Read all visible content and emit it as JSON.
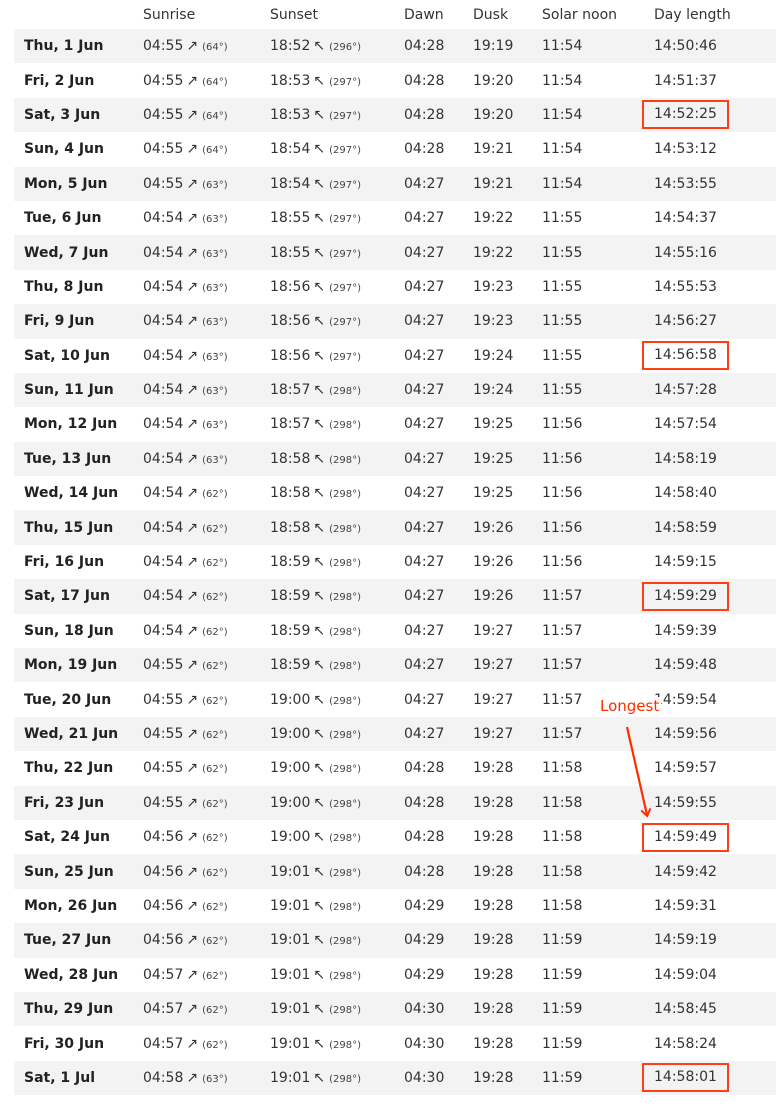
{
  "headers": [
    "",
    "Sunrise",
    "Sunset",
    "Dawn",
    "Dusk",
    "Solar noon",
    "Day length"
  ],
  "sunrise_symbol": "↗",
  "sunset_symbol": "↖",
  "rows": [
    {
      "date": "Thu, 1 Jun",
      "sunrise": "04:55",
      "sunrise_az": "(64°)",
      "sunset": "18:52",
      "sunset_az": "(296°)",
      "dawn": "04:28",
      "dusk": "19:19",
      "noon": "11:54",
      "length": "14:50:46",
      "highlight": false
    },
    {
      "date": "Fri, 2 Jun",
      "sunrise": "04:55",
      "sunrise_az": "(64°)",
      "sunset": "18:53",
      "sunset_az": "(297°)",
      "dawn": "04:28",
      "dusk": "19:20",
      "noon": "11:54",
      "length": "14:51:37",
      "highlight": false
    },
    {
      "date": "Sat, 3 Jun",
      "sunrise": "04:55",
      "sunrise_az": "(64°)",
      "sunset": "18:53",
      "sunset_az": "(297°)",
      "dawn": "04:28",
      "dusk": "19:20",
      "noon": "11:54",
      "length": "14:52:25",
      "highlight": true
    },
    {
      "date": "Sun, 4 Jun",
      "sunrise": "04:55",
      "sunrise_az": "(64°)",
      "sunset": "18:54",
      "sunset_az": "(297°)",
      "dawn": "04:28",
      "dusk": "19:21",
      "noon": "11:54",
      "length": "14:53:12",
      "highlight": false
    },
    {
      "date": "Mon, 5 Jun",
      "sunrise": "04:55",
      "sunrise_az": "(63°)",
      "sunset": "18:54",
      "sunset_az": "(297°)",
      "dawn": "04:27",
      "dusk": "19:21",
      "noon": "11:54",
      "length": "14:53:55",
      "highlight": false
    },
    {
      "date": "Tue, 6 Jun",
      "sunrise": "04:54",
      "sunrise_az": "(63°)",
      "sunset": "18:55",
      "sunset_az": "(297°)",
      "dawn": "04:27",
      "dusk": "19:22",
      "noon": "11:55",
      "length": "14:54:37",
      "highlight": false
    },
    {
      "date": "Wed, 7 Jun",
      "sunrise": "04:54",
      "sunrise_az": "(63°)",
      "sunset": "18:55",
      "sunset_az": "(297°)",
      "dawn": "04:27",
      "dusk": "19:22",
      "noon": "11:55",
      "length": "14:55:16",
      "highlight": false
    },
    {
      "date": "Thu, 8 Jun",
      "sunrise": "04:54",
      "sunrise_az": "(63°)",
      "sunset": "18:56",
      "sunset_az": "(297°)",
      "dawn": "04:27",
      "dusk": "19:23",
      "noon": "11:55",
      "length": "14:55:53",
      "highlight": false
    },
    {
      "date": "Fri, 9 Jun",
      "sunrise": "04:54",
      "sunrise_az": "(63°)",
      "sunset": "18:56",
      "sunset_az": "(297°)",
      "dawn": "04:27",
      "dusk": "19:23",
      "noon": "11:55",
      "length": "14:56:27",
      "highlight": false
    },
    {
      "date": "Sat, 10 Jun",
      "sunrise": "04:54",
      "sunrise_az": "(63°)",
      "sunset": "18:56",
      "sunset_az": "(297°)",
      "dawn": "04:27",
      "dusk": "19:24",
      "noon": "11:55",
      "length": "14:56:58",
      "highlight": true
    },
    {
      "date": "Sun, 11 Jun",
      "sunrise": "04:54",
      "sunrise_az": "(63°)",
      "sunset": "18:57",
      "sunset_az": "(298°)",
      "dawn": "04:27",
      "dusk": "19:24",
      "noon": "11:55",
      "length": "14:57:28",
      "highlight": false
    },
    {
      "date": "Mon, 12 Jun",
      "sunrise": "04:54",
      "sunrise_az": "(63°)",
      "sunset": "18:57",
      "sunset_az": "(298°)",
      "dawn": "04:27",
      "dusk": "19:25",
      "noon": "11:56",
      "length": "14:57:54",
      "highlight": false
    },
    {
      "date": "Tue, 13 Jun",
      "sunrise": "04:54",
      "sunrise_az": "(63°)",
      "sunset": "18:58",
      "sunset_az": "(298°)",
      "dawn": "04:27",
      "dusk": "19:25",
      "noon": "11:56",
      "length": "14:58:19",
      "highlight": false
    },
    {
      "date": "Wed, 14 Jun",
      "sunrise": "04:54",
      "sunrise_az": "(62°)",
      "sunset": "18:58",
      "sunset_az": "(298°)",
      "dawn": "04:27",
      "dusk": "19:25",
      "noon": "11:56",
      "length": "14:58:40",
      "highlight": false
    },
    {
      "date": "Thu, 15 Jun",
      "sunrise": "04:54",
      "sunrise_az": "(62°)",
      "sunset": "18:58",
      "sunset_az": "(298°)",
      "dawn": "04:27",
      "dusk": "19:26",
      "noon": "11:56",
      "length": "14:58:59",
      "highlight": false
    },
    {
      "date": "Fri, 16 Jun",
      "sunrise": "04:54",
      "sunrise_az": "(62°)",
      "sunset": "18:59",
      "sunset_az": "(298°)",
      "dawn": "04:27",
      "dusk": "19:26",
      "noon": "11:56",
      "length": "14:59:15",
      "highlight": false
    },
    {
      "date": "Sat, 17 Jun",
      "sunrise": "04:54",
      "sunrise_az": "(62°)",
      "sunset": "18:59",
      "sunset_az": "(298°)",
      "dawn": "04:27",
      "dusk": "19:26",
      "noon": "11:57",
      "length": "14:59:29",
      "highlight": true
    },
    {
      "date": "Sun, 18 Jun",
      "sunrise": "04:54",
      "sunrise_az": "(62°)",
      "sunset": "18:59",
      "sunset_az": "(298°)",
      "dawn": "04:27",
      "dusk": "19:27",
      "noon": "11:57",
      "length": "14:59:39",
      "highlight": false
    },
    {
      "date": "Mon, 19 Jun",
      "sunrise": "04:55",
      "sunrise_az": "(62°)",
      "sunset": "18:59",
      "sunset_az": "(298°)",
      "dawn": "04:27",
      "dusk": "19:27",
      "noon": "11:57",
      "length": "14:59:48",
      "highlight": false
    },
    {
      "date": "Tue, 20 Jun",
      "sunrise": "04:55",
      "sunrise_az": "(62°)",
      "sunset": "19:00",
      "sunset_az": "(298°)",
      "dawn": "04:27",
      "dusk": "19:27",
      "noon": "11:57",
      "length": "14:59:54",
      "highlight": false
    },
    {
      "date": "Wed, 21 Jun",
      "sunrise": "04:55",
      "sunrise_az": "(62°)",
      "sunset": "19:00",
      "sunset_az": "(298°)",
      "dawn": "04:27",
      "dusk": "19:27",
      "noon": "11:57",
      "length": "14:59:56",
      "highlight": false
    },
    {
      "date": "Thu, 22 Jun",
      "sunrise": "04:55",
      "sunrise_az": "(62°)",
      "sunset": "19:00",
      "sunset_az": "(298°)",
      "dawn": "04:28",
      "dusk": "19:28",
      "noon": "11:58",
      "length": "14:59:57",
      "highlight": false
    },
    {
      "date": "Fri, 23 Jun",
      "sunrise": "04:55",
      "sunrise_az": "(62°)",
      "sunset": "19:00",
      "sunset_az": "(298°)",
      "dawn": "04:28",
      "dusk": "19:28",
      "noon": "11:58",
      "length": "14:59:55",
      "highlight": false
    },
    {
      "date": "Sat, 24 Jun",
      "sunrise": "04:56",
      "sunrise_az": "(62°)",
      "sunset": "19:00",
      "sunset_az": "(298°)",
      "dawn": "04:28",
      "dusk": "19:28",
      "noon": "11:58",
      "length": "14:59:49",
      "highlight": true
    },
    {
      "date": "Sun, 25 Jun",
      "sunrise": "04:56",
      "sunrise_az": "(62°)",
      "sunset": "19:01",
      "sunset_az": "(298°)",
      "dawn": "04:28",
      "dusk": "19:28",
      "noon": "11:58",
      "length": "14:59:42",
      "highlight": false
    },
    {
      "date": "Mon, 26 Jun",
      "sunrise": "04:56",
      "sunrise_az": "(62°)",
      "sunset": "19:01",
      "sunset_az": "(298°)",
      "dawn": "04:29",
      "dusk": "19:28",
      "noon": "11:58",
      "length": "14:59:31",
      "highlight": false
    },
    {
      "date": "Tue, 27 Jun",
      "sunrise": "04:56",
      "sunrise_az": "(62°)",
      "sunset": "19:01",
      "sunset_az": "(298°)",
      "dawn": "04:29",
      "dusk": "19:28",
      "noon": "11:59",
      "length": "14:59:19",
      "highlight": false
    },
    {
      "date": "Wed, 28 Jun",
      "sunrise": "04:57",
      "sunrise_az": "(62°)",
      "sunset": "19:01",
      "sunset_az": "(298°)",
      "dawn": "04:29",
      "dusk": "19:28",
      "noon": "11:59",
      "length": "14:59:04",
      "highlight": false
    },
    {
      "date": "Thu, 29 Jun",
      "sunrise": "04:57",
      "sunrise_az": "(62°)",
      "sunset": "19:01",
      "sunset_az": "(298°)",
      "dawn": "04:30",
      "dusk": "19:28",
      "noon": "11:59",
      "length": "14:58:45",
      "highlight": false
    },
    {
      "date": "Fri, 30 Jun",
      "sunrise": "04:57",
      "sunrise_az": "(62°)",
      "sunset": "19:01",
      "sunset_az": "(298°)",
      "dawn": "04:30",
      "dusk": "19:28",
      "noon": "11:59",
      "length": "14:58:24",
      "highlight": false
    },
    {
      "date": "Sat, 1 Jul",
      "sunrise": "04:58",
      "sunrise_az": "(63°)",
      "sunset": "19:01",
      "sunset_az": "(298°)",
      "dawn": "04:30",
      "dusk": "19:28",
      "noon": "11:59",
      "length": "14:58:01",
      "highlight": true
    }
  ],
  "annotation": {
    "label": "Longest",
    "color": "#ff2d00"
  },
  "colors": {
    "highlight_border": "#ff3d17",
    "stripe": "#f3f3f3"
  }
}
